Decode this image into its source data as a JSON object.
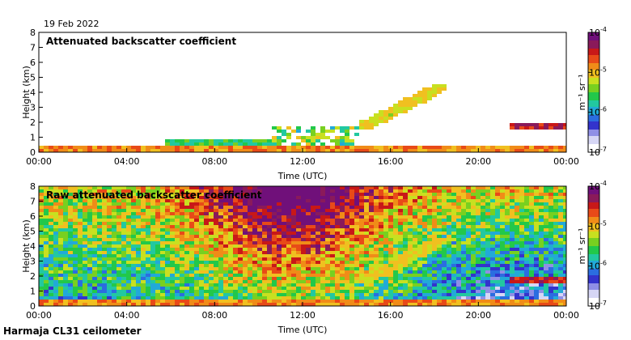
{
  "date_label": "19 Feb 2022",
  "footer": "Harmaja CL31 ceilometer",
  "colors": {
    "cmap": [
      "#ffffff",
      "#d6d6f5",
      "#8f8fe6",
      "#3333cc",
      "#2b6de0",
      "#22a9d8",
      "#22c8a0",
      "#22c84a",
      "#78d020",
      "#c8e020",
      "#f0c020",
      "#f08c18",
      "#e84a18",
      "#c81818",
      "#8a1a5a",
      "#70107a"
    ],
    "background": "#ffffff"
  },
  "chart_data": [
    {
      "type": "heatmap",
      "title": "Attenuated backscatter coefficient",
      "xlabel": "Time (UTC)",
      "ylabel": "Height (km)",
      "x_ticks": [
        "00:00",
        "04:00",
        "08:00",
        "12:00",
        "16:00",
        "20:00",
        "00:00"
      ],
      "xlim_hours": [
        0,
        24
      ],
      "y_ticks": [
        "0",
        "1",
        "2",
        "3",
        "4",
        "5",
        "6",
        "7",
        "8"
      ],
      "ylim_km": [
        0,
        8
      ],
      "colorbar": {
        "label": "m⁻¹ sr⁻¹",
        "scale": "log",
        "range": [
          1e-07,
          0.0001
        ],
        "tick_labels": [
          {
            "base": "10",
            "exp": "-4"
          },
          {
            "base": "10",
            "exp": "-5"
          },
          {
            "base": "10",
            "exp": "-6"
          },
          {
            "base": "10",
            "exp": "-7"
          }
        ]
      },
      "features": [
        {
          "name": "surface layer",
          "t0": 0,
          "t1": 24,
          "h0": 0,
          "h1": 0.35,
          "level": 0.72
        },
        {
          "name": "aerosol layer",
          "t0": 5.8,
          "t1": 10.5,
          "h0": 0.2,
          "h1": 0.8,
          "level": 0.45
        },
        {
          "name": "low cloud",
          "t0": 10.5,
          "t1": 14.5,
          "h0": 0.3,
          "h1": 1.8,
          "level": 0.5
        },
        {
          "name": "rising cloud",
          "t0": 14.5,
          "t1": 18.5,
          "h0": 1.5,
          "h1": 4.5,
          "level": 0.62
        },
        {
          "name": "cirrus deck",
          "t0": 21.5,
          "t1": 24,
          "h0": 1.6,
          "h1": 1.9,
          "level": 0.85
        }
      ]
    },
    {
      "type": "heatmap",
      "title": "Raw attenuated backscatter coefficient",
      "xlabel": "Time (UTC)",
      "ylabel": "Height (km)",
      "x_ticks": [
        "00:00",
        "04:00",
        "08:00",
        "12:00",
        "16:00",
        "20:00",
        "00:00"
      ],
      "xlim_hours": [
        0,
        24
      ],
      "y_ticks": [
        "0",
        "1",
        "2",
        "3",
        "4",
        "5",
        "6",
        "7",
        "8"
      ],
      "ylim_km": [
        0,
        8
      ],
      "colorbar": {
        "label": "m⁻¹ sr⁻¹",
        "scale": "log",
        "range": [
          1e-07,
          0.0001
        ],
        "tick_labels": [
          {
            "base": "10",
            "exp": "-4"
          },
          {
            "base": "10",
            "exp": "-5"
          },
          {
            "base": "10",
            "exp": "-6"
          },
          {
            "base": "10",
            "exp": "-7"
          }
        ]
      },
      "features": [
        {
          "name": "noise field",
          "t0": 0,
          "t1": 24,
          "h0": 0.5,
          "h1": 8,
          "level": 0.45
        },
        {
          "name": "surface layer",
          "t0": 0,
          "t1": 24,
          "h0": 0,
          "h1": 0.35,
          "level": 0.72
        },
        {
          "name": "rising cloud",
          "t0": 14.5,
          "t1": 18.5,
          "h0": 1.5,
          "h1": 4.5,
          "level": 0.62
        },
        {
          "name": "cirrus deck",
          "t0": 21.5,
          "t1": 24,
          "h0": 1.6,
          "h1": 1.9,
          "level": 0.85
        }
      ]
    }
  ]
}
